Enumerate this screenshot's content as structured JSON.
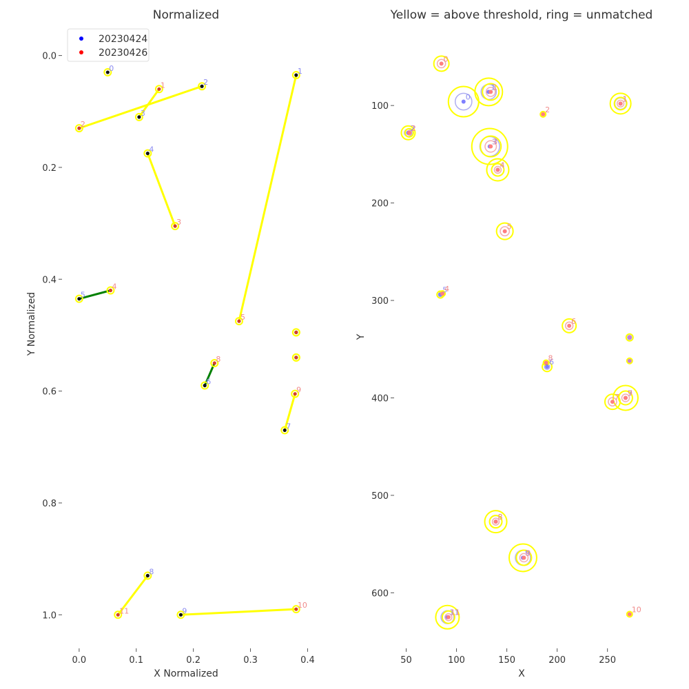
{
  "colors": {
    "series_a": "#0000ff",
    "series_b": "#ff0000",
    "match_line": "#ffff00",
    "good_match_line": "#008000",
    "ring": "#ffff00",
    "label_a": "#8b8bf0",
    "label_b": "#f08b8b",
    "point_a": "#7f7fff",
    "point_b": "#ff7f7f",
    "point_unmatched": "#c77fd8"
  },
  "chart_data": [
    {
      "type": "scatter",
      "title": "Normalized",
      "xlabel": "X Normalized",
      "ylabel": "Y Normalized",
      "xlim": [
        -0.03,
        0.42
      ],
      "ylim": [
        1.06,
        -0.05
      ],
      "y_inverted": true,
      "grid": false,
      "xticks": [
        "0.0",
        "0.1",
        "0.2",
        "0.3",
        "0.4"
      ],
      "yticks": [
        "0.0",
        "0.2",
        "0.4",
        "0.6",
        "0.8",
        "1.0"
      ],
      "legend": {
        "position": "top-left",
        "entries": [
          {
            "label": "20230424",
            "color": "#0000ff"
          },
          {
            "label": "20230426",
            "color": "#ff0000"
          }
        ]
      },
      "series_a": [
        {
          "id": "0",
          "x": 0.05,
          "y": 0.03
        },
        {
          "id": "1",
          "x": 0.38,
          "y": 0.035
        },
        {
          "id": "2",
          "x": 0.215,
          "y": 0.055
        },
        {
          "id": "3",
          "x": 0.105,
          "y": 0.11
        },
        {
          "id": "4",
          "x": 0.12,
          "y": 0.175
        },
        {
          "id": "5",
          "x": 0.0,
          "y": 0.435
        },
        {
          "id": "6",
          "x": 0.22,
          "y": 0.59
        },
        {
          "id": "7",
          "x": 0.36,
          "y": 0.67
        },
        {
          "id": "8",
          "x": 0.12,
          "y": 0.93
        },
        {
          "id": "9",
          "x": 0.178,
          "y": 1.0
        },
        {
          "id": "",
          "x": 0.38,
          "y": 0.495
        },
        {
          "id": "",
          "x": 0.38,
          "y": 0.54
        }
      ],
      "series_b": [
        {
          "id": "1",
          "x": 0.14,
          "y": 0.06
        },
        {
          "id": "2",
          "x": 0.0,
          "y": 0.13
        },
        {
          "id": "3",
          "x": 0.168,
          "y": 0.305
        },
        {
          "id": "4",
          "x": 0.055,
          "y": 0.42
        },
        {
          "id": "5",
          "x": 0.28,
          "y": 0.475
        },
        {
          "id": "8",
          "x": 0.237,
          "y": 0.55
        },
        {
          "id": "9",
          "x": 0.378,
          "y": 0.605
        },
        {
          "id": "10",
          "x": 0.38,
          "y": 0.99
        },
        {
          "id": "11",
          "x": 0.068,
          "y": 1.0
        },
        {
          "id": "",
          "x": 0.38,
          "y": 0.495
        },
        {
          "id": "",
          "x": 0.38,
          "y": 0.54
        }
      ],
      "matches": [
        {
          "from": [
            0.105,
            0.11
          ],
          "to": [
            0.14,
            0.06
          ],
          "quality": "above"
        },
        {
          "from": [
            0.215,
            0.055
          ],
          "to": [
            0.0,
            0.13
          ],
          "quality": "above"
        },
        {
          "from": [
            0.38,
            0.035
          ],
          "to": [
            0.28,
            0.475
          ],
          "quality": "above"
        },
        {
          "from": [
            0.12,
            0.175
          ],
          "to": [
            0.168,
            0.305
          ],
          "quality": "above"
        },
        {
          "from": [
            0.0,
            0.435
          ],
          "to": [
            0.055,
            0.42
          ],
          "quality": "below"
        },
        {
          "from": [
            0.22,
            0.59
          ],
          "to": [
            0.237,
            0.55
          ],
          "quality": "below"
        },
        {
          "from": [
            0.36,
            0.67
          ],
          "to": [
            0.378,
            0.605
          ],
          "quality": "above"
        },
        {
          "from": [
            0.12,
            0.93
          ],
          "to": [
            0.068,
            1.0
          ],
          "quality": "above"
        },
        {
          "from": [
            0.178,
            1.0
          ],
          "to": [
            0.38,
            0.99
          ],
          "quality": "above"
        }
      ]
    },
    {
      "type": "scatter",
      "title": "Yellow = above threshold, ring = unmatched",
      "xlabel": "X",
      "ylabel": "Y",
      "xlim": [
        38,
        292
      ],
      "ylim": [
        657,
        20
      ],
      "y_inverted": true,
      "grid": false,
      "xticks": [
        "50",
        "100",
        "150",
        "200",
        "250"
      ],
      "yticks": [
        "100",
        "200",
        "300",
        "400",
        "500",
        "600"
      ],
      "series_a": [
        {
          "id": "0",
          "x": 107,
          "y": 96,
          "ring": 22
        },
        {
          "id": "1",
          "x": 132,
          "y": 86,
          "ring": 20
        },
        {
          "id": "1",
          "x": 263,
          "y": 98,
          "ring": 15
        },
        {
          "id": "2",
          "x": 52,
          "y": 128,
          "ring": 10
        },
        {
          "id": "3",
          "x": 133,
          "y": 142,
          "ring": 26
        },
        {
          "id": "4",
          "x": 141,
          "y": 166,
          "ring": 16
        },
        {
          "id": "5",
          "x": 84,
          "y": 294,
          "ring": 5
        },
        {
          "id": "6",
          "x": 190,
          "y": 368,
          "ring": 7
        },
        {
          "id": "7",
          "x": 268,
          "y": 400,
          "ring": 18
        },
        {
          "id": "8",
          "x": 139,
          "y": 527,
          "ring": 16
        },
        {
          "id": "9",
          "x": 166,
          "y": 564,
          "ring": 20
        },
        {
          "id": "11",
          "x": 91,
          "y": 625,
          "ring": 17
        },
        {
          "id": "",
          "x": 272,
          "y": 338,
          "ring": 5
        }
      ],
      "series_b": [
        {
          "id": "0",
          "x": 85,
          "y": 57,
          "ring": 11
        },
        {
          "id": "1",
          "x": 134,
          "y": 86,
          "ring": 12
        },
        {
          "id": "1",
          "x": 263,
          "y": 98,
          "ring": 9
        },
        {
          "id": "2",
          "x": 186,
          "y": 109,
          "ring": 3
        },
        {
          "id": "2",
          "x": 53,
          "y": 128,
          "ring": 6
        },
        {
          "id": "3",
          "x": 134,
          "y": 142,
          "ring": 15
        },
        {
          "id": "4",
          "x": 141,
          "y": 166,
          "ring": 9
        },
        {
          "id": "5",
          "x": 148,
          "y": 229,
          "ring": 12
        },
        {
          "id": "4",
          "x": 86,
          "y": 293,
          "ring": 3
        },
        {
          "id": "6",
          "x": 212,
          "y": 326,
          "ring": 10
        },
        {
          "id": "8",
          "x": 189,
          "y": 364,
          "ring": 4
        },
        {
          "id": "7",
          "x": 255,
          "y": 404,
          "ring": 11
        },
        {
          "id": "9",
          "x": 268,
          "y": 400,
          "ring": 10
        },
        {
          "id": "8",
          "x": 139,
          "y": 527,
          "ring": 9
        },
        {
          "id": "9",
          "x": 167,
          "y": 564,
          "ring": 11
        },
        {
          "id": "10",
          "x": 272,
          "y": 622,
          "ring": 3
        },
        {
          "id": "11",
          "x": 92,
          "y": 625,
          "ring": 9
        },
        {
          "id": "",
          "x": 272,
          "y": 362,
          "ring": 3
        }
      ],
      "matches": [
        {
          "from": [
            84,
            294
          ],
          "to": [
            86,
            293
          ],
          "quality": "below"
        },
        {
          "from": [
            190,
            368
          ],
          "to": [
            189,
            364
          ],
          "quality": "below"
        }
      ]
    }
  ]
}
